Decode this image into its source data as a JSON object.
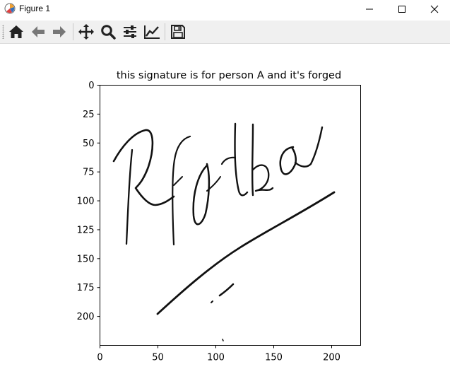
{
  "window": {
    "title": "Figure 1",
    "controls": [
      "minimize-icon",
      "maximize-icon",
      "close-icon"
    ]
  },
  "toolbar": {
    "buttons": [
      {
        "name": "home",
        "icon": "home-icon"
      },
      {
        "name": "back",
        "icon": "arrow-left-icon"
      },
      {
        "name": "forward",
        "icon": "arrow-right-icon"
      },
      {
        "name": "pan",
        "icon": "move-icon"
      },
      {
        "name": "zoom",
        "icon": "magnifier-icon"
      },
      {
        "name": "configure-subplots",
        "icon": "sliders-icon"
      },
      {
        "name": "edit-axis",
        "icon": "line-chart-icon"
      },
      {
        "name": "save",
        "icon": "floppy-disk-icon"
      }
    ]
  },
  "plot": {
    "title": "this signature is for person A and it's  forged",
    "x_ticks": [
      "0",
      "50",
      "100",
      "150",
      "200"
    ],
    "y_ticks": [
      "0",
      "25",
      "50",
      "75",
      "100",
      "125",
      "150",
      "175",
      "200"
    ],
    "xlim": [
      0,
      225
    ],
    "ylim": [
      225,
      0
    ],
    "image_content": "handwritten signature"
  }
}
